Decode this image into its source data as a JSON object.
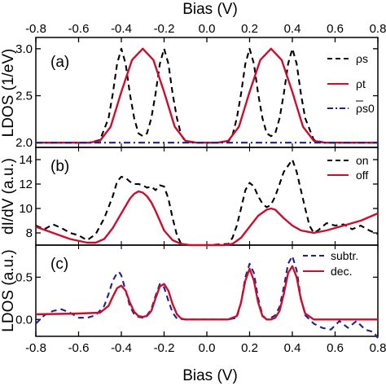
{
  "chart_data": {
    "type": "line",
    "top_xlabel": "Bias (V)",
    "bottom_xlabel": "Bias (V)",
    "xlim": [
      -0.8,
      0.8
    ],
    "xticks": [
      -0.8,
      -0.6,
      -0.4,
      -0.2,
      0.0,
      0.2,
      0.4,
      0.6,
      0.8
    ],
    "xtick_labels": [
      "-0.8",
      "-0.6",
      "-0.4",
      "-0.2",
      "0.0",
      "0.2",
      "0.4",
      "0.6",
      "0.8"
    ],
    "colors": {
      "dashed_black": "#000000",
      "red": "#c8102e",
      "navy": "#1f1f8f"
    },
    "panels": [
      {
        "tag": "(a)",
        "ylabel": "LDOS (1/eV)",
        "ylim": [
          1.95,
          3.12
        ],
        "yticks": [
          2.0,
          2.5,
          3.0
        ],
        "ytick_labels": [
          "2.0",
          "2.5",
          "3.0"
        ],
        "legend": {
          "position": "top-right"
        },
        "series": [
          {
            "name": "ρs",
            "style": "dash",
            "color": "#000000",
            "x": [
              -0.8,
              -0.55,
              -0.5,
              -0.46,
              -0.44,
              -0.42,
              -0.4,
              -0.38,
              -0.36,
              -0.34,
              -0.32,
              -0.3,
              -0.28,
              -0.26,
              -0.24,
              -0.22,
              -0.2,
              -0.18,
              -0.16,
              -0.14,
              -0.12,
              -0.1,
              -0.05,
              0.05,
              0.1,
              0.12,
              0.14,
              0.16,
              0.18,
              0.2,
              0.22,
              0.24,
              0.26,
              0.28,
              0.3,
              0.32,
              0.34,
              0.36,
              0.38,
              0.4,
              0.42,
              0.44,
              0.46,
              0.5,
              0.55,
              0.8
            ],
            "y": [
              2.0,
              2.0,
              2.03,
              2.26,
              2.52,
              2.84,
              3.0,
              2.84,
              2.52,
              2.26,
              2.1,
              2.07,
              2.1,
              2.26,
              2.52,
              2.84,
              3.0,
              2.84,
              2.52,
              2.26,
              2.08,
              2.01,
              2.0,
              2.0,
              2.01,
              2.08,
              2.26,
              2.52,
              2.84,
              3.0,
              2.84,
              2.52,
              2.26,
              2.1,
              2.07,
              2.1,
              2.26,
              2.52,
              2.84,
              3.0,
              2.84,
              2.52,
              2.26,
              2.03,
              2.0,
              2.0
            ]
          },
          {
            "name": "ρt",
            "style": "solid",
            "color": "#c8102e",
            "x": [
              -0.8,
              -0.6,
              -0.55,
              -0.5,
              -0.45,
              -0.4,
              -0.35,
              -0.3,
              -0.25,
              -0.2,
              -0.15,
              -0.1,
              -0.05,
              0.0,
              0.05,
              0.1,
              0.15,
              0.2,
              0.25,
              0.3,
              0.35,
              0.4,
              0.45,
              0.5,
              0.55,
              0.6,
              0.8
            ],
            "y": [
              2.0,
              2.0,
              2.0,
              2.02,
              2.17,
              2.54,
              2.88,
              3.0,
              2.88,
              2.54,
              2.17,
              2.02,
              2.0,
              2.0,
              2.0,
              2.02,
              2.17,
              2.54,
              2.88,
              3.0,
              2.88,
              2.54,
              2.17,
              2.02,
              2.0,
              2.0,
              2.0
            ]
          },
          {
            "name": "ρs0",
            "style": "dashdot",
            "color": "#1f1f8f",
            "x": [
              -0.8,
              0.8
            ],
            "y": [
              2.0,
              2.0
            ]
          }
        ]
      },
      {
        "tag": "(b)",
        "ylabel": "dI/dV (a.u.)",
        "ylim": [
          7.0,
          15.0
        ],
        "yticks": [
          8,
          10,
          12,
          14
        ],
        "ytick_labels": [
          "8",
          "10",
          "12",
          "14"
        ],
        "legend": {
          "position": "top-right"
        },
        "series": [
          {
            "name": "on",
            "style": "dash",
            "color": "#000000",
            "x": [
              -0.8,
              -0.76,
              -0.72,
              -0.68,
              -0.64,
              -0.6,
              -0.56,
              -0.52,
              -0.48,
              -0.44,
              -0.42,
              -0.4,
              -0.38,
              -0.36,
              -0.34,
              -0.32,
              -0.3,
              -0.28,
              -0.26,
              -0.24,
              -0.22,
              -0.2,
              -0.18,
              -0.16,
              -0.14,
              -0.12,
              -0.1,
              0.0,
              0.1,
              0.12,
              0.14,
              0.16,
              0.18,
              0.2,
              0.22,
              0.24,
              0.26,
              0.28,
              0.3,
              0.32,
              0.34,
              0.36,
              0.38,
              0.4,
              0.42,
              0.44,
              0.46,
              0.48,
              0.5,
              0.52,
              0.56,
              0.6,
              0.64,
              0.68,
              0.72,
              0.76,
              0.8
            ],
            "y": [
              8.6,
              8.3,
              8.7,
              8.4,
              8.0,
              7.8,
              7.4,
              7.9,
              9.2,
              11.0,
              12.2,
              12.6,
              12.5,
              12.2,
              12.0,
              12.0,
              11.9,
              11.7,
              11.8,
              11.5,
              11.9,
              11.8,
              10.8,
              9.2,
              7.8,
              7.1,
              7.0,
              7.0,
              7.1,
              7.6,
              8.6,
              10.0,
              11.5,
              12.1,
              11.8,
              11.0,
              10.4,
              10.1,
              10.3,
              11.0,
              12.0,
              13.0,
              13.5,
              14.0,
              13.0,
              11.5,
              10.0,
              8.6,
              8.0,
              8.2,
              8.8,
              8.6,
              8.7,
              8.3,
              8.6,
              8.2,
              7.9
            ]
          },
          {
            "name": "off",
            "style": "solid",
            "color": "#c8102e",
            "x": [
              -0.8,
              -0.72,
              -0.64,
              -0.56,
              -0.52,
              -0.48,
              -0.44,
              -0.4,
              -0.36,
              -0.34,
              -0.32,
              -0.3,
              -0.28,
              -0.26,
              -0.24,
              -0.22,
              -0.2,
              -0.16,
              -0.12,
              -0.08,
              0.0,
              0.08,
              0.12,
              0.16,
              0.2,
              0.24,
              0.28,
              0.3,
              0.32,
              0.36,
              0.4,
              0.44,
              0.5,
              0.56,
              0.64,
              0.72,
              0.8
            ],
            "y": [
              8.5,
              8.0,
              7.5,
              7.2,
              7.2,
              7.5,
              8.4,
              9.6,
              10.8,
              11.2,
              11.4,
              11.3,
              11.0,
              10.5,
              9.8,
              9.0,
              8.2,
              7.4,
              7.1,
              7.0,
              7.0,
              7.0,
              7.1,
              7.6,
              8.5,
              9.4,
              9.9,
              10.0,
              9.9,
              9.2,
              8.6,
              8.2,
              8.0,
              8.2,
              8.6,
              9.0,
              9.6
            ]
          }
        ]
      },
      {
        "tag": "(c)",
        "ylabel": "LDOS (a.u.)",
        "ylim": [
          -0.2,
          0.88
        ],
        "yticks": [
          0.0,
          0.5
        ],
        "ytick_labels": [
          "0.0",
          "0.5"
        ],
        "legend": {
          "position": "top-right"
        },
        "series": [
          {
            "name": "subtr.",
            "style": "dash",
            "color": "#1f1f8f",
            "x": [
              -0.8,
              -0.76,
              -0.72,
              -0.68,
              -0.64,
              -0.6,
              -0.56,
              -0.52,
              -0.48,
              -0.46,
              -0.44,
              -0.42,
              -0.41,
              -0.4,
              -0.38,
              -0.36,
              -0.34,
              -0.32,
              -0.3,
              -0.28,
              -0.26,
              -0.24,
              -0.22,
              -0.2,
              -0.18,
              -0.16,
              -0.14,
              -0.1,
              0.0,
              0.1,
              0.14,
              0.16,
              0.18,
              0.2,
              0.22,
              0.24,
              0.26,
              0.28,
              0.3,
              0.32,
              0.34,
              0.36,
              0.38,
              0.4,
              0.42,
              0.44,
              0.46,
              0.5,
              0.54,
              0.58,
              0.62,
              0.66,
              0.7,
              0.74,
              0.78,
              0.8
            ],
            "y": [
              -0.05,
              0.05,
              0.1,
              0.12,
              0.08,
              0.02,
              0.02,
              0.05,
              0.16,
              0.3,
              0.46,
              0.55,
              0.56,
              0.52,
              0.34,
              0.16,
              0.06,
              0.03,
              0.02,
              0.05,
              0.12,
              0.28,
              0.42,
              0.38,
              0.22,
              0.08,
              0.01,
              0.0,
              0.0,
              0.0,
              0.02,
              0.2,
              0.5,
              0.66,
              0.55,
              0.25,
              0.05,
              0.0,
              0.02,
              0.05,
              0.15,
              0.38,
              0.66,
              0.75,
              0.58,
              0.25,
              0.05,
              -0.05,
              -0.1,
              -0.12,
              -0.02,
              -0.1,
              -0.02,
              -0.12,
              -0.15,
              -0.22
            ]
          },
          {
            "name": "dec.",
            "style": "solid",
            "color": "#c8102e",
            "x": [
              -0.8,
              -0.6,
              -0.5,
              -0.46,
              -0.44,
              -0.42,
              -0.4,
              -0.38,
              -0.36,
              -0.34,
              -0.32,
              -0.3,
              -0.28,
              -0.26,
              -0.24,
              -0.22,
              -0.2,
              -0.18,
              -0.16,
              -0.14,
              -0.12,
              -0.1,
              0.0,
              0.1,
              0.14,
              0.16,
              0.18,
              0.2,
              0.22,
              0.24,
              0.26,
              0.28,
              0.3,
              0.32,
              0.34,
              0.36,
              0.38,
              0.4,
              0.42,
              0.44,
              0.46,
              0.5,
              0.6,
              0.8
            ],
            "y": [
              0.06,
              0.07,
              0.08,
              0.16,
              0.27,
              0.37,
              0.4,
              0.34,
              0.2,
              0.09,
              0.04,
              0.03,
              0.04,
              0.1,
              0.25,
              0.39,
              0.42,
              0.34,
              0.18,
              0.06,
              0.01,
              0.0,
              0.0,
              0.0,
              0.04,
              0.2,
              0.46,
              0.6,
              0.46,
              0.2,
              0.04,
              0.0,
              0.0,
              0.02,
              0.1,
              0.3,
              0.55,
              0.63,
              0.5,
              0.24,
              0.07,
              0.0,
              0.0,
              0.0
            ]
          }
        ]
      }
    ]
  }
}
